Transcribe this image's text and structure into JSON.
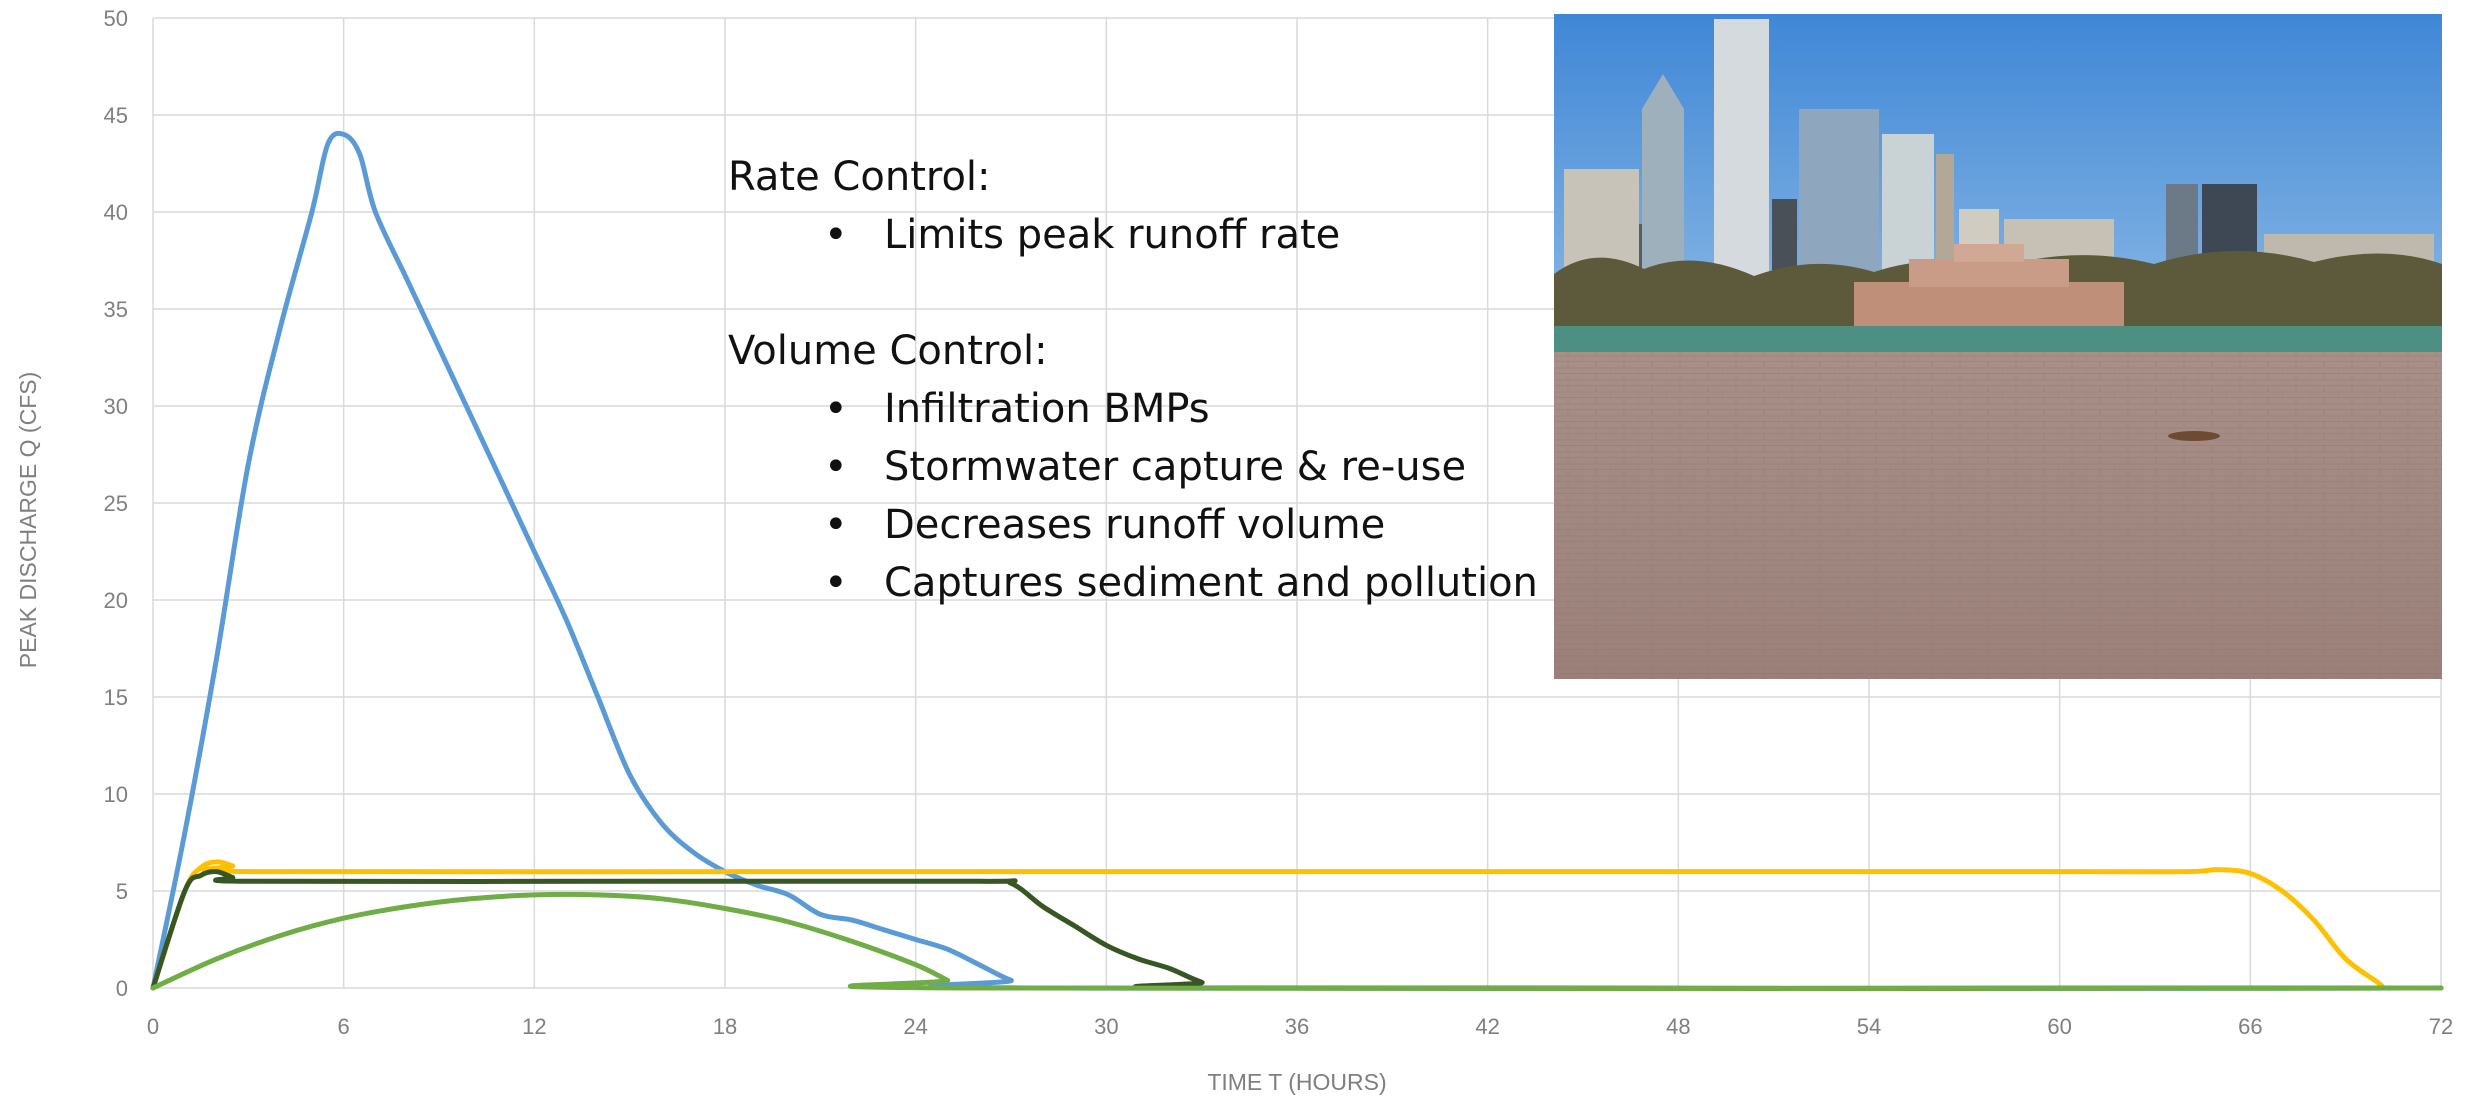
{
  "chart_data": {
    "type": "line",
    "xlabel": "TIME T (HOURS)",
    "ylabel": "PEAK DISCHARGE Q (CFS)",
    "xlim": [
      0,
      72
    ],
    "ylim": [
      0,
      50
    ],
    "x_ticks": [
      0,
      6,
      12,
      18,
      24,
      30,
      36,
      42,
      48,
      54,
      60,
      66,
      72
    ],
    "y_ticks": [
      0,
      5,
      10,
      15,
      20,
      25,
      30,
      35,
      40,
      45,
      50
    ],
    "grid": true,
    "legend": "none",
    "series": [
      {
        "color": "#5b9bd5",
        "points": [
          [
            0,
            0
          ],
          [
            1,
            8
          ],
          [
            2,
            17
          ],
          [
            3,
            27
          ],
          [
            4,
            34
          ],
          [
            5,
            40
          ],
          [
            5.5,
            43.5
          ],
          [
            6,
            44
          ],
          [
            6.5,
            43
          ],
          [
            7,
            40
          ],
          [
            8,
            36.5
          ],
          [
            9,
            33
          ],
          [
            10,
            29.5
          ],
          [
            11,
            26
          ],
          [
            12,
            22.5
          ],
          [
            13,
            19
          ],
          [
            14,
            15
          ],
          [
            15,
            11
          ],
          [
            16,
            8.5
          ],
          [
            17,
            7
          ],
          [
            18,
            6
          ],
          [
            19,
            5.3
          ],
          [
            20,
            4.8
          ],
          [
            21,
            3.8
          ],
          [
            22,
            3.5
          ],
          [
            23,
            3
          ],
          [
            24,
            2.5
          ],
          [
            25,
            2
          ],
          [
            26,
            1.2
          ],
          [
            27,
            0.4
          ],
          [
            28,
            0
          ],
          [
            72,
            0
          ]
        ]
      },
      {
        "color": "#ffc000",
        "points": [
          [
            0,
            0
          ],
          [
            1,
            5
          ],
          [
            1.5,
            6.2
          ],
          [
            2,
            6.5
          ],
          [
            2.5,
            6.3
          ],
          [
            3,
            6
          ],
          [
            20,
            6
          ],
          [
            40,
            6
          ],
          [
            60,
            6
          ],
          [
            64,
            6
          ],
          [
            65,
            6.1
          ],
          [
            66,
            5.9
          ],
          [
            67,
            5
          ],
          [
            68,
            3.5
          ],
          [
            69,
            1.5
          ],
          [
            70,
            0.3
          ],
          [
            70.2,
            0
          ]
        ]
      },
      {
        "color": "#375623",
        "points": [
          [
            0,
            0
          ],
          [
            1,
            5
          ],
          [
            1.5,
            5.8
          ],
          [
            2,
            6
          ],
          [
            2.5,
            5.7
          ],
          [
            3,
            5.5
          ],
          [
            15,
            5.5
          ],
          [
            26,
            5.5
          ],
          [
            27,
            5.4
          ],
          [
            28,
            4.2
          ],
          [
            29,
            3.2
          ],
          [
            30,
            2.2
          ],
          [
            31,
            1.5
          ],
          [
            32,
            1
          ],
          [
            33,
            0.3
          ],
          [
            34,
            0
          ],
          [
            72,
            0
          ]
        ]
      },
      {
        "color": "#70ad47",
        "points": [
          [
            0,
            0
          ],
          [
            2,
            1.5
          ],
          [
            4,
            2.7
          ],
          [
            6,
            3.6
          ],
          [
            8,
            4.2
          ],
          [
            10,
            4.6
          ],
          [
            12,
            4.8
          ],
          [
            14,
            4.8
          ],
          [
            16,
            4.6
          ],
          [
            18,
            4.1
          ],
          [
            20,
            3.4
          ],
          [
            22,
            2.4
          ],
          [
            24,
            1.2
          ],
          [
            25,
            0.4
          ],
          [
            25.5,
            0
          ],
          [
            72,
            0
          ]
        ]
      }
    ]
  },
  "notes": {
    "rate_heading": "Rate Control:",
    "rate_items": [
      "Limits peak runoff rate"
    ],
    "volume_heading": "Volume Control:",
    "volume_items": [
      "Infiltration BMPs",
      "Stormwater capture & re-use",
      "Decreases runoff volume",
      "Captures sediment and pollution"
    ]
  }
}
